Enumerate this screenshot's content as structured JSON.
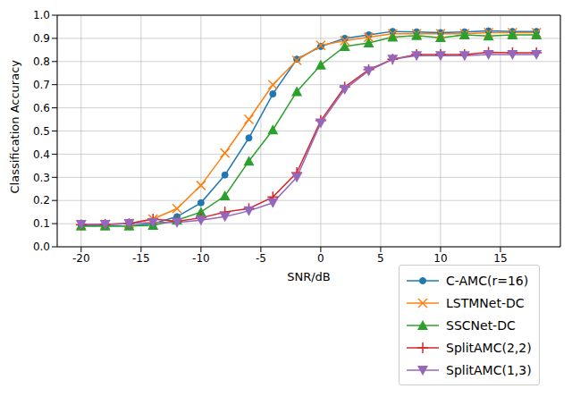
{
  "chart_data": {
    "type": "line",
    "x_label": "SNR/dB",
    "y_label": "Classification Accuracy",
    "x": [
      -20,
      -18,
      -16,
      -14,
      -12,
      -10,
      -8,
      -6,
      -4,
      -2,
      0,
      2,
      4,
      6,
      8,
      10,
      12,
      14,
      16,
      18
    ],
    "xlim": [
      -22,
      20
    ],
    "xticks": [
      -20,
      -15,
      -10,
      -5,
      0,
      5,
      10,
      15
    ],
    "ylim": [
      0,
      1
    ],
    "yticks": [
      {
        "value": 0,
        "label": "0.0"
      },
      0.1,
      0.2,
      0.3,
      0.4,
      0.5,
      0.6,
      0.7,
      0.8,
      0.9,
      {
        "value": 1,
        "label": "1.0"
      }
    ],
    "grid": true,
    "legend": "lower right",
    "series": [
      {
        "name": "C-AMC(r=16)",
        "color": "#1f77b4",
        "marker": "circle",
        "values": [
          0.09,
          0.09,
          0.09,
          0.1,
          0.13,
          0.19,
          0.31,
          0.47,
          0.66,
          0.81,
          0.865,
          0.9,
          0.915,
          0.93,
          0.928,
          0.925,
          0.928,
          0.932,
          0.93,
          0.93
        ]
      },
      {
        "name": "LSTMNet-DC",
        "color": "#ff7f0e",
        "marker": "x",
        "values": [
          0.095,
          0.097,
          0.1,
          0.12,
          0.165,
          0.265,
          0.405,
          0.55,
          0.7,
          0.805,
          0.87,
          0.89,
          0.905,
          0.92,
          0.92,
          0.92,
          0.92,
          0.925,
          0.925,
          0.925
        ]
      },
      {
        "name": "SSCNet-DC",
        "color": "#2ca02c",
        "marker": "triangle",
        "values": [
          0.09,
          0.09,
          0.09,
          0.093,
          0.115,
          0.15,
          0.22,
          0.37,
          0.505,
          0.67,
          0.785,
          0.865,
          0.88,
          0.905,
          0.912,
          0.903,
          0.915,
          0.91,
          0.915,
          0.915
        ]
      },
      {
        "name": "SplitAMC(2,2)",
        "color": "#d62728",
        "marker": "plus",
        "values": [
          0.095,
          0.097,
          0.1,
          0.12,
          0.11,
          0.125,
          0.15,
          0.165,
          0.215,
          0.32,
          0.545,
          0.69,
          0.765,
          0.81,
          0.83,
          0.83,
          0.83,
          0.84,
          0.838,
          0.838
        ]
      },
      {
        "name": "SplitAMC(1,3)",
        "color": "#9467bd",
        "marker": "triangle_down",
        "values": [
          0.097,
          0.097,
          0.1,
          0.105,
          0.105,
          0.115,
          0.13,
          0.155,
          0.19,
          0.3,
          0.535,
          0.68,
          0.76,
          0.81,
          0.825,
          0.825,
          0.825,
          0.83,
          0.83,
          0.83
        ]
      }
    ]
  }
}
